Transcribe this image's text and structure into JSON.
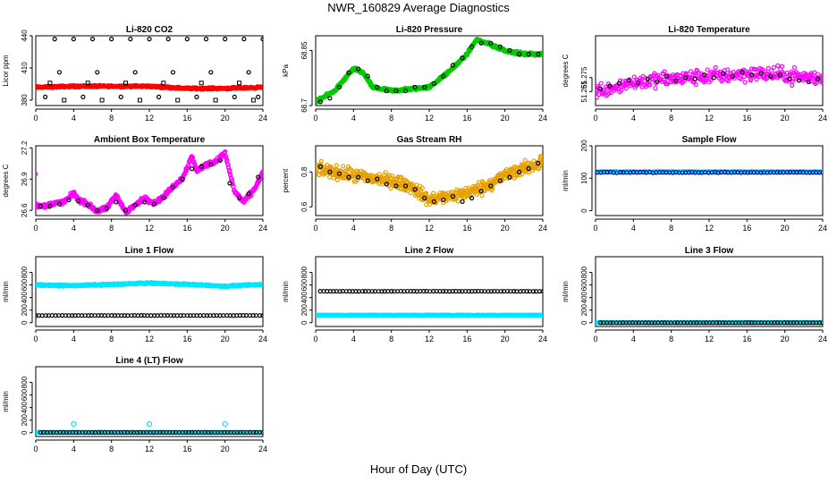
{
  "page": {
    "title": "NWR_160829  Average Diagnostics",
    "xlabel": "Hour of Day (UTC)"
  },
  "chart_data": [
    {
      "type": "scatter",
      "title": "Li-820 CO2",
      "ylabel": "Licor ppm",
      "xlim": [
        0,
        24
      ],
      "ylim": [
        375,
        440
      ],
      "xticks": [
        0,
        4,
        8,
        12,
        16,
        20,
        24
      ],
      "yticks": [
        380,
        410,
        440
      ],
      "series": [
        {
          "color": "#ff0000",
          "marker": "dense",
          "x_range": [
            0,
            24
          ],
          "y_trend": [
            [
              0,
              392
            ],
            [
              4,
              393
            ],
            [
              8,
              393
            ],
            [
              12,
              393
            ],
            [
              16,
              391
            ],
            [
              20,
              391
            ],
            [
              24,
              392
            ]
          ],
          "jitter": 1.2
        },
        {
          "color": "#000000",
          "marker": "circle",
          "x": [
            2,
            4,
            6,
            8,
            10,
            12,
            14,
            16,
            18,
            20,
            22,
            24,
            1,
            5,
            9,
            13,
            17,
            21,
            23.5,
            2.5,
            6.5,
            10.5,
            14.5,
            18.5,
            22.5
          ],
          "y": [
            437,
            437,
            437,
            437,
            437,
            437,
            437,
            437,
            437,
            437,
            437,
            437,
            383,
            383,
            383,
            383,
            383,
            383,
            383,
            406,
            406,
            406,
            406,
            406,
            406
          ]
        },
        {
          "color": "#000000",
          "marker": "square",
          "x": [
            1.5,
            5.5,
            9.5,
            13.5,
            17.5,
            21.5,
            3,
            7,
            11,
            15,
            19,
            23
          ],
          "y": [
            396,
            396,
            396,
            396,
            396,
            396,
            380,
            380,
            380,
            380,
            380,
            380
          ]
        }
      ]
    },
    {
      "type": "scatter",
      "title": "Li-820 Pressure",
      "ylabel": "kPa",
      "xlim": [
        0,
        24
      ],
      "ylim": [
        68.7,
        68.89
      ],
      "xticks": [
        0,
        4,
        8,
        12,
        16,
        20,
        24
      ],
      "yticks": [
        68.7,
        68.85
      ],
      "series": [
        {
          "color": "#00cc00",
          "marker": "dense",
          "x_range": [
            0,
            24
          ],
          "y_trend": [
            [
              0,
              68.71
            ],
            [
              2,
              68.74
            ],
            [
              4,
              68.8
            ],
            [
              5,
              68.79
            ],
            [
              6,
              68.75
            ],
            [
              8,
              68.74
            ],
            [
              12,
              68.75
            ],
            [
              14,
              68.79
            ],
            [
              16,
              68.84
            ],
            [
              17,
              68.88
            ],
            [
              18,
              68.87
            ],
            [
              20,
              68.85
            ],
            [
              22,
              68.84
            ],
            [
              24,
              68.84
            ]
          ],
          "jitter": 0.006
        },
        {
          "color": "#000000",
          "marker": "circle",
          "x": [
            0.5,
            1.5,
            2.5,
            3.5,
            4.5,
            5.5,
            6.5,
            7.5,
            8.5,
            9.5,
            10.5,
            11.5,
            12.5,
            13.5,
            14.5,
            15.5,
            16.5,
            17.5,
            18.5,
            19.5,
            20.5,
            21.5,
            22.5,
            23.5
          ],
          "y": [
            68.71,
            68.72,
            68.75,
            68.79,
            68.8,
            68.78,
            68.75,
            68.74,
            68.74,
            68.74,
            68.75,
            68.75,
            68.76,
            68.78,
            68.81,
            68.83,
            68.86,
            68.87,
            68.87,
            68.86,
            68.85,
            68.84,
            68.84,
            68.84
          ]
        }
      ]
    },
    {
      "type": "scatter",
      "title": "Li-820 Temperature",
      "ylabel": "degrees C",
      "xlim": [
        0,
        24
      ],
      "ylim": [
        51.255,
        51.305
      ],
      "xticks": [
        0,
        4,
        8,
        12,
        16,
        20,
        24
      ],
      "yticks": [
        51.265,
        51.275
      ],
      "series": [
        {
          "color": "#ff00ff",
          "marker": "circle",
          "x_range": [
            0,
            24
          ],
          "y_trend": [
            [
              0,
              51.265
            ],
            [
              4,
              51.272
            ],
            [
              8,
              51.274
            ],
            [
              12,
              51.276
            ],
            [
              16,
              51.278
            ],
            [
              20,
              51.277
            ],
            [
              24,
              51.274
            ]
          ],
          "jitter": 0.008,
          "count": 340
        },
        {
          "color": "#000000",
          "marker": "circle",
          "x": [
            0.5,
            1.5,
            2.5,
            3.5,
            4.5,
            5.5,
            6.5,
            7.5,
            8.5,
            9.5,
            10.5,
            11.5,
            12.5,
            13.5,
            14.5,
            15.5,
            16.5,
            17.5,
            18.5,
            19.5,
            20.5,
            21.5,
            22.5,
            23.5
          ],
          "y": [
            51.267,
            51.269,
            51.271,
            51.273,
            51.271,
            51.274,
            51.272,
            51.276,
            51.273,
            51.275,
            51.274,
            51.277,
            51.275,
            51.278,
            51.276,
            51.279,
            51.277,
            51.278,
            51.276,
            51.277,
            51.274,
            51.273,
            51.272,
            51.274
          ]
        }
      ]
    },
    {
      "type": "scatter",
      "title": "Ambient Box Temperature",
      "ylabel": "degrees C",
      "xlim": [
        0,
        24
      ],
      "ylim": [
        26.55,
        27.22
      ],
      "xticks": [
        0,
        4,
        8,
        12,
        16,
        20,
        24
      ],
      "yticks": [
        26.6,
        26.9,
        27.2
      ],
      "series": [
        {
          "color": "#ff00ff",
          "marker": "dense",
          "x_range": [
            0,
            24
          ],
          "y_trend": [
            [
              0,
              26.65
            ],
            [
              1,
              26.64
            ],
            [
              2,
              26.67
            ],
            [
              3,
              26.68
            ],
            [
              4,
              26.77
            ],
            [
              4.5,
              26.7
            ],
            [
              5.5,
              26.66
            ],
            [
              6.5,
              26.59
            ],
            [
              7.5,
              26.62
            ],
            [
              8.5,
              26.75
            ],
            [
              9.5,
              26.58
            ],
            [
              10.5,
              26.65
            ],
            [
              11.5,
              26.72
            ],
            [
              12.5,
              26.67
            ],
            [
              13.5,
              26.73
            ],
            [
              14.5,
              26.83
            ],
            [
              15.5,
              26.91
            ],
            [
              16.5,
              27.12
            ],
            [
              17,
              26.98
            ],
            [
              18,
              27.04
            ],
            [
              19,
              27.07
            ],
            [
              20,
              27.15
            ],
            [
              21,
              26.78
            ],
            [
              22,
              26.68
            ],
            [
              23,
              26.79
            ],
            [
              24,
              26.96
            ]
          ],
          "jitter": 0.03
        },
        {
          "color": "#000000",
          "marker": "circle",
          "x": [
            0.5,
            1.5,
            2.5,
            3.5,
            4.5,
            5.5,
            6.5,
            7.5,
            8.5,
            9.5,
            10.5,
            11.5,
            12.5,
            13.5,
            14.5,
            15.5,
            16.5,
            17.5,
            18.5,
            19.5,
            20.5,
            21.5,
            22.5,
            23.5
          ],
          "y": [
            26.64,
            26.64,
            26.66,
            26.7,
            26.69,
            26.65,
            26.6,
            26.62,
            26.68,
            26.6,
            26.65,
            26.68,
            26.66,
            26.72,
            26.82,
            26.9,
            27.0,
            27.02,
            27.04,
            27.08,
            26.86,
            26.72,
            26.76,
            26.92
          ]
        }
      ]
    },
    {
      "type": "scatter",
      "title": "Gas Stream RH",
      "ylabel": "percent",
      "xlim": [
        0,
        24
      ],
      "ylim": [
        0.55,
        0.95
      ],
      "xticks": [
        0,
        4,
        8,
        12,
        16,
        20,
        24
      ],
      "yticks": [
        0.6,
        0.8
      ],
      "series": [
        {
          "color": "#e8a000",
          "marker": "dense",
          "x_range": [
            0,
            24
          ],
          "y_trend": [
            [
              0,
              0.82
            ],
            [
              4,
              0.78
            ],
            [
              8,
              0.75
            ],
            [
              10,
              0.72
            ],
            [
              12,
              0.64
            ],
            [
              14,
              0.66
            ],
            [
              16,
              0.68
            ],
            [
              18,
              0.72
            ],
            [
              20,
              0.78
            ],
            [
              22,
              0.82
            ],
            [
              24,
              0.86
            ]
          ],
          "jitter": 0.055
        },
        {
          "color": "#000000",
          "marker": "circle",
          "x": [
            0.5,
            1.5,
            2.5,
            3.5,
            4.5,
            5.5,
            6.5,
            7.5,
            8.5,
            9.5,
            10.5,
            11.5,
            12.5,
            13.5,
            14.5,
            15.5,
            16.5,
            17.5,
            18.5,
            19.5,
            20.5,
            21.5,
            22.5,
            23.5
          ],
          "y": [
            0.83,
            0.8,
            0.79,
            0.77,
            0.77,
            0.75,
            0.76,
            0.73,
            0.72,
            0.72,
            0.7,
            0.65,
            0.63,
            0.64,
            0.66,
            0.63,
            0.65,
            0.69,
            0.72,
            0.75,
            0.77,
            0.8,
            0.82,
            0.85
          ]
        }
      ]
    },
    {
      "type": "scatter",
      "title": "Sample Flow",
      "ylabel": "ml/min",
      "xlim": [
        0,
        24
      ],
      "ylim": [
        -15,
        200
      ],
      "xticks": [
        0,
        4,
        8,
        12,
        16,
        20,
        24
      ],
      "yticks": [
        0,
        100,
        200
      ],
      "series": [
        {
          "color": "#00e5ff",
          "marker": "dense",
          "x_range": [
            0.2,
            24
          ],
          "y_trend": [
            [
              0,
              120
            ],
            [
              24,
              120
            ]
          ],
          "jitter": 2
        },
        {
          "color": "#00008b",
          "marker": "circle",
          "x_range": [
            0.2,
            24
          ],
          "y_trend": [
            [
              0,
              118
            ],
            [
              24,
              118
            ]
          ],
          "jitter": 1.5,
          "count": 70
        }
      ]
    },
    {
      "type": "scatter",
      "title": "Line 1 Flow",
      "ylabel": "ml/min",
      "xlim": [
        0,
        24
      ],
      "ylim": [
        -60,
        1050
      ],
      "xticks": [
        0,
        4,
        8,
        12,
        16,
        20,
        24
      ],
      "yticks": [
        0,
        200,
        400,
        600,
        800
      ],
      "series": [
        {
          "color": "#00e5ff",
          "marker": "dense",
          "x_range": [
            0,
            24
          ],
          "y_trend": [
            [
              0,
              600
            ],
            [
              4,
              590
            ],
            [
              8,
              610
            ],
            [
              12,
              630
            ],
            [
              16,
              610
            ],
            [
              20,
              580
            ],
            [
              24,
              610
            ]
          ],
          "jitter": 18
        },
        {
          "color": "#000000",
          "marker": "circle",
          "x_range": [
            0,
            24
          ],
          "y_trend": [
            [
              0,
              115
            ],
            [
              24,
              115
            ]
          ],
          "jitter": 2,
          "count": 70
        }
      ]
    },
    {
      "type": "scatter",
      "title": "Line 2 Flow",
      "ylabel": "ml/min",
      "xlim": [
        0,
        24
      ],
      "ylim": [
        -60,
        1050
      ],
      "xticks": [
        0,
        4,
        8,
        12,
        16,
        20,
        24
      ],
      "yticks": [
        0,
        200,
        400,
        600,
        800
      ],
      "series": [
        {
          "color": "#00e5ff",
          "marker": "dense",
          "x_range": [
            0,
            24
          ],
          "y_trend": [
            [
              0,
              120
            ],
            [
              24,
              120
            ]
          ],
          "jitter": 8
        },
        {
          "color": "#000000",
          "marker": "circle",
          "x_range": [
            0.5,
            24
          ],
          "y_trend": [
            [
              0,
              500
            ],
            [
              24,
              500
            ]
          ],
          "jitter": 3,
          "count": 70
        }
      ]
    },
    {
      "type": "scatter",
      "title": "Line 3 Flow",
      "ylabel": "ml/min",
      "xlim": [
        0,
        24
      ],
      "ylim": [
        -60,
        1050
      ],
      "xticks": [
        0,
        4,
        8,
        12,
        16,
        20,
        24
      ],
      "yticks": [
        0,
        200,
        400,
        600,
        800
      ],
      "series": [
        {
          "color": "#00e5ff",
          "marker": "dense",
          "x_range": [
            0,
            24
          ],
          "y_trend": [
            [
              0,
              0
            ],
            [
              24,
              0
            ]
          ],
          "jitter": 3
        },
        {
          "color": "#000000",
          "marker": "circle",
          "x_range": [
            0.5,
            24
          ],
          "y_trend": [
            [
              0,
              0
            ],
            [
              24,
              0
            ]
          ],
          "jitter": 1,
          "count": 70
        }
      ]
    },
    {
      "type": "scatter",
      "title": "Line 4 (LT) Flow",
      "ylabel": "ml/min",
      "xlim": [
        0,
        24
      ],
      "ylim": [
        -60,
        1050
      ],
      "xticks": [
        0,
        4,
        8,
        12,
        16,
        20,
        24
      ],
      "yticks": [
        0,
        200,
        400,
        600,
        800
      ],
      "series": [
        {
          "color": "#00e5ff",
          "marker": "dense",
          "x_range": [
            0,
            24
          ],
          "y_trend": [
            [
              0,
              5
            ],
            [
              24,
              5
            ]
          ],
          "jitter": 3,
          "outliers": [
            [
              0,
              5
            ],
            [
              4,
              140
            ],
            [
              12,
              140
            ],
            [
              20,
              140
            ]
          ]
        },
        {
          "color": "#000000",
          "marker": "circle",
          "x_range": [
            0.5,
            24
          ],
          "y_trend": [
            [
              0,
              5
            ],
            [
              24,
              5
            ]
          ],
          "jitter": 1,
          "count": 70
        }
      ]
    }
  ]
}
